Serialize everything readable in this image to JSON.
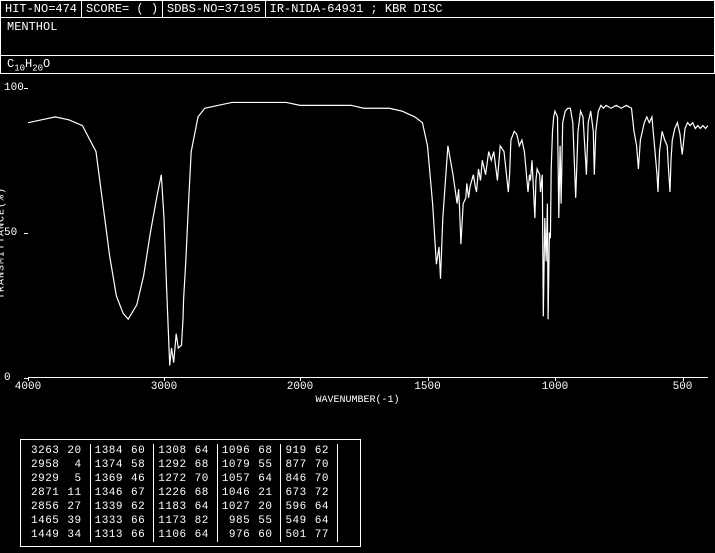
{
  "header": {
    "hit_no": "HIT-NO=474",
    "score": "SCORE=   (   )",
    "sdbs_no": "SDBS-NO=37195",
    "ir_id": "IR-NIDA-64931 ; KBR DISC"
  },
  "compound_name": "MENTHOL",
  "formula_html": "C<sub>10</sub>H<sub>20</sub>O",
  "chart": {
    "type": "line",
    "ylabel": "TRANSMITTANCE(%)",
    "xlabel": "WAVENUMBER(-1)",
    "xlim": [
      4000,
      400
    ],
    "ylim": [
      0,
      100
    ],
    "yticks": [
      0,
      50,
      100
    ],
    "xticks": [
      4000,
      3000,
      2000,
      1500,
      1000,
      500
    ],
    "line_color": "#ffffff",
    "line_width": 1.2,
    "background_color": "#000000",
    "text_color": "#ffffff",
    "label_fontsize": 10,
    "tick_fontsize": 11,
    "points": [
      [
        4000,
        88
      ],
      [
        3900,
        89
      ],
      [
        3800,
        90
      ],
      [
        3700,
        89
      ],
      [
        3600,
        87
      ],
      [
        3500,
        78
      ],
      [
        3450,
        60
      ],
      [
        3400,
        42
      ],
      [
        3350,
        28
      ],
      [
        3300,
        22
      ],
      [
        3263,
        20
      ],
      [
        3200,
        25
      ],
      [
        3150,
        35
      ],
      [
        3100,
        50
      ],
      [
        3050,
        63
      ],
      [
        3020,
        70
      ],
      [
        3000,
        55
      ],
      [
        2980,
        30
      ],
      [
        2958,
        4
      ],
      [
        2945,
        10
      ],
      [
        2929,
        5
      ],
      [
        2910,
        15
      ],
      [
        2895,
        10
      ],
      [
        2871,
        11
      ],
      [
        2860,
        20
      ],
      [
        2856,
        27
      ],
      [
        2840,
        40
      ],
      [
        2820,
        60
      ],
      [
        2800,
        78
      ],
      [
        2750,
        90
      ],
      [
        2700,
        93
      ],
      [
        2600,
        94
      ],
      [
        2500,
        95
      ],
      [
        2400,
        95
      ],
      [
        2300,
        95
      ],
      [
        2200,
        95
      ],
      [
        2100,
        95
      ],
      [
        2000,
        94
      ],
      [
        1900,
        94
      ],
      [
        1800,
        94
      ],
      [
        1750,
        93
      ],
      [
        1700,
        93
      ],
      [
        1650,
        93
      ],
      [
        1600,
        92
      ],
      [
        1550,
        90
      ],
      [
        1520,
        88
      ],
      [
        1500,
        80
      ],
      [
        1480,
        60
      ],
      [
        1465,
        39
      ],
      [
        1455,
        45
      ],
      [
        1449,
        34
      ],
      [
        1440,
        55
      ],
      [
        1420,
        80
      ],
      [
        1400,
        70
      ],
      [
        1384,
        60
      ],
      [
        1378,
        65
      ],
      [
        1374,
        58
      ],
      [
        1369,
        46
      ],
      [
        1360,
        60
      ],
      [
        1350,
        62
      ],
      [
        1346,
        67
      ],
      [
        1339,
        62
      ],
      [
        1333,
        66
      ],
      [
        1320,
        70
      ],
      [
        1313,
        66
      ],
      [
        1308,
        64
      ],
      [
        1300,
        72
      ],
      [
        1292,
        68
      ],
      [
        1285,
        75
      ],
      [
        1272,
        70
      ],
      [
        1260,
        78
      ],
      [
        1250,
        75
      ],
      [
        1240,
        78
      ],
      [
        1226,
        68
      ],
      [
        1215,
        80
      ],
      [
        1200,
        78
      ],
      [
        1190,
        70
      ],
      [
        1183,
        64
      ],
      [
        1178,
        70
      ],
      [
        1173,
        82
      ],
      [
        1160,
        85
      ],
      [
        1150,
        84
      ],
      [
        1140,
        80
      ],
      [
        1130,
        82
      ],
      [
        1120,
        78
      ],
      [
        1106,
        64
      ],
      [
        1100,
        70
      ],
      [
        1096,
        68
      ],
      [
        1090,
        75
      ],
      [
        1079,
        55
      ],
      [
        1075,
        68
      ],
      [
        1070,
        72
      ],
      [
        1060,
        70
      ],
      [
        1057,
        64
      ],
      [
        1050,
        70
      ],
      [
        1046,
        21
      ],
      [
        1040,
        55
      ],
      [
        1035,
        40
      ],
      [
        1030,
        60
      ],
      [
        1027,
        20
      ],
      [
        1022,
        50
      ],
      [
        1018,
        48
      ],
      [
        1015,
        72
      ],
      [
        1010,
        85
      ],
      [
        1005,
        90
      ],
      [
        1000,
        92
      ],
      [
        990,
        90
      ],
      [
        985,
        55
      ],
      [
        980,
        80
      ],
      [
        976,
        60
      ],
      [
        970,
        88
      ],
      [
        960,
        92
      ],
      [
        950,
        93
      ],
      [
        940,
        93
      ],
      [
        930,
        88
      ],
      [
        919,
        62
      ],
      [
        910,
        85
      ],
      [
        900,
        92
      ],
      [
        890,
        90
      ],
      [
        880,
        75
      ],
      [
        877,
        70
      ],
      [
        870,
        88
      ],
      [
        860,
        92
      ],
      [
        850,
        85
      ],
      [
        846,
        70
      ],
      [
        840,
        85
      ],
      [
        830,
        92
      ],
      [
        820,
        94
      ],
      [
        810,
        93
      ],
      [
        800,
        94
      ],
      [
        780,
        93
      ],
      [
        760,
        94
      ],
      [
        740,
        93
      ],
      [
        720,
        94
      ],
      [
        700,
        93
      ],
      [
        690,
        85
      ],
      [
        680,
        80
      ],
      [
        673,
        72
      ],
      [
        665,
        82
      ],
      [
        650,
        88
      ],
      [
        640,
        90
      ],
      [
        630,
        88
      ],
      [
        620,
        90
      ],
      [
        610,
        80
      ],
      [
        600,
        70
      ],
      [
        596,
        64
      ],
      [
        590,
        78
      ],
      [
        580,
        85
      ],
      [
        570,
        82
      ],
      [
        560,
        80
      ],
      [
        555,
        72
      ],
      [
        549,
        64
      ],
      [
        545,
        75
      ],
      [
        540,
        82
      ],
      [
        530,
        86
      ],
      [
        520,
        88
      ],
      [
        510,
        84
      ],
      [
        505,
        80
      ],
      [
        501,
        77
      ],
      [
        495,
        82
      ],
      [
        490,
        86
      ],
      [
        480,
        88
      ],
      [
        470,
        87
      ],
      [
        460,
        88
      ],
      [
        450,
        86
      ],
      [
        440,
        87
      ],
      [
        430,
        86
      ],
      [
        420,
        87
      ],
      [
        410,
        86
      ],
      [
        400,
        87
      ]
    ]
  },
  "peak_table": {
    "columns_per_group": 2,
    "groups": 6,
    "rows": [
      [
        [
          3263,
          20
        ],
        [
          1384,
          60
        ],
        [
          1308,
          64
        ],
        [
          1096,
          68
        ],
        [
          919,
          62
        ],
        [
          null,
          null
        ]
      ],
      [
        [
          2958,
          4
        ],
        [
          1374,
          58
        ],
        [
          1292,
          68
        ],
        [
          1079,
          55
        ],
        [
          877,
          70
        ],
        [
          null,
          null
        ]
      ],
      [
        [
          2929,
          5
        ],
        [
          1369,
          46
        ],
        [
          1272,
          70
        ],
        [
          1057,
          64
        ],
        [
          846,
          70
        ],
        [
          null,
          null
        ]
      ],
      [
        [
          2871,
          11
        ],
        [
          1346,
          67
        ],
        [
          1226,
          68
        ],
        [
          1046,
          21
        ],
        [
          673,
          72
        ],
        [
          null,
          null
        ]
      ],
      [
        [
          2856,
          27
        ],
        [
          1339,
          62
        ],
        [
          1183,
          64
        ],
        [
          1027,
          20
        ],
        [
          596,
          64
        ],
        [
          null,
          null
        ]
      ],
      [
        [
          1465,
          39
        ],
        [
          1333,
          66
        ],
        [
          1173,
          82
        ],
        [
          985,
          55
        ],
        [
          549,
          64
        ],
        [
          null,
          null
        ]
      ],
      [
        [
          1449,
          34
        ],
        [
          1313,
          66
        ],
        [
          1106,
          64
        ],
        [
          976,
          60
        ],
        [
          501,
          77
        ],
        [
          null,
          null
        ]
      ]
    ]
  }
}
